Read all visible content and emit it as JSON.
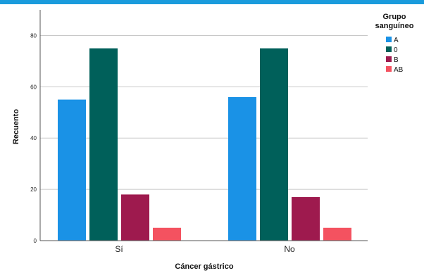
{
  "chart_data": {
    "type": "bar",
    "categories": [
      "Sí",
      "No"
    ],
    "series": [
      {
        "name": "A",
        "values": [
          55,
          56
        ],
        "color": "#1a92e6"
      },
      {
        "name": "0",
        "values": [
          75,
          75
        ],
        "color": "#00605a"
      },
      {
        "name": "B",
        "values": [
          18,
          17
        ],
        "color": "#9e1a4e"
      },
      {
        "name": "AB",
        "values": [
          5,
          5
        ],
        "color": "#f45260"
      }
    ],
    "xlabel": "Cáncer gástrico",
    "ylabel": "Recuento",
    "ylim": [
      0,
      90
    ],
    "yticks": [
      0,
      20,
      40,
      60,
      80
    ],
    "grid": true,
    "legend": {
      "title_line1": "Grupo",
      "title_line2": "sanguíneo",
      "placement": "top-right"
    }
  },
  "colors": {
    "top_strip": "#1a9bdc",
    "grid": "#c8c8c8",
    "axis": "#555555"
  }
}
